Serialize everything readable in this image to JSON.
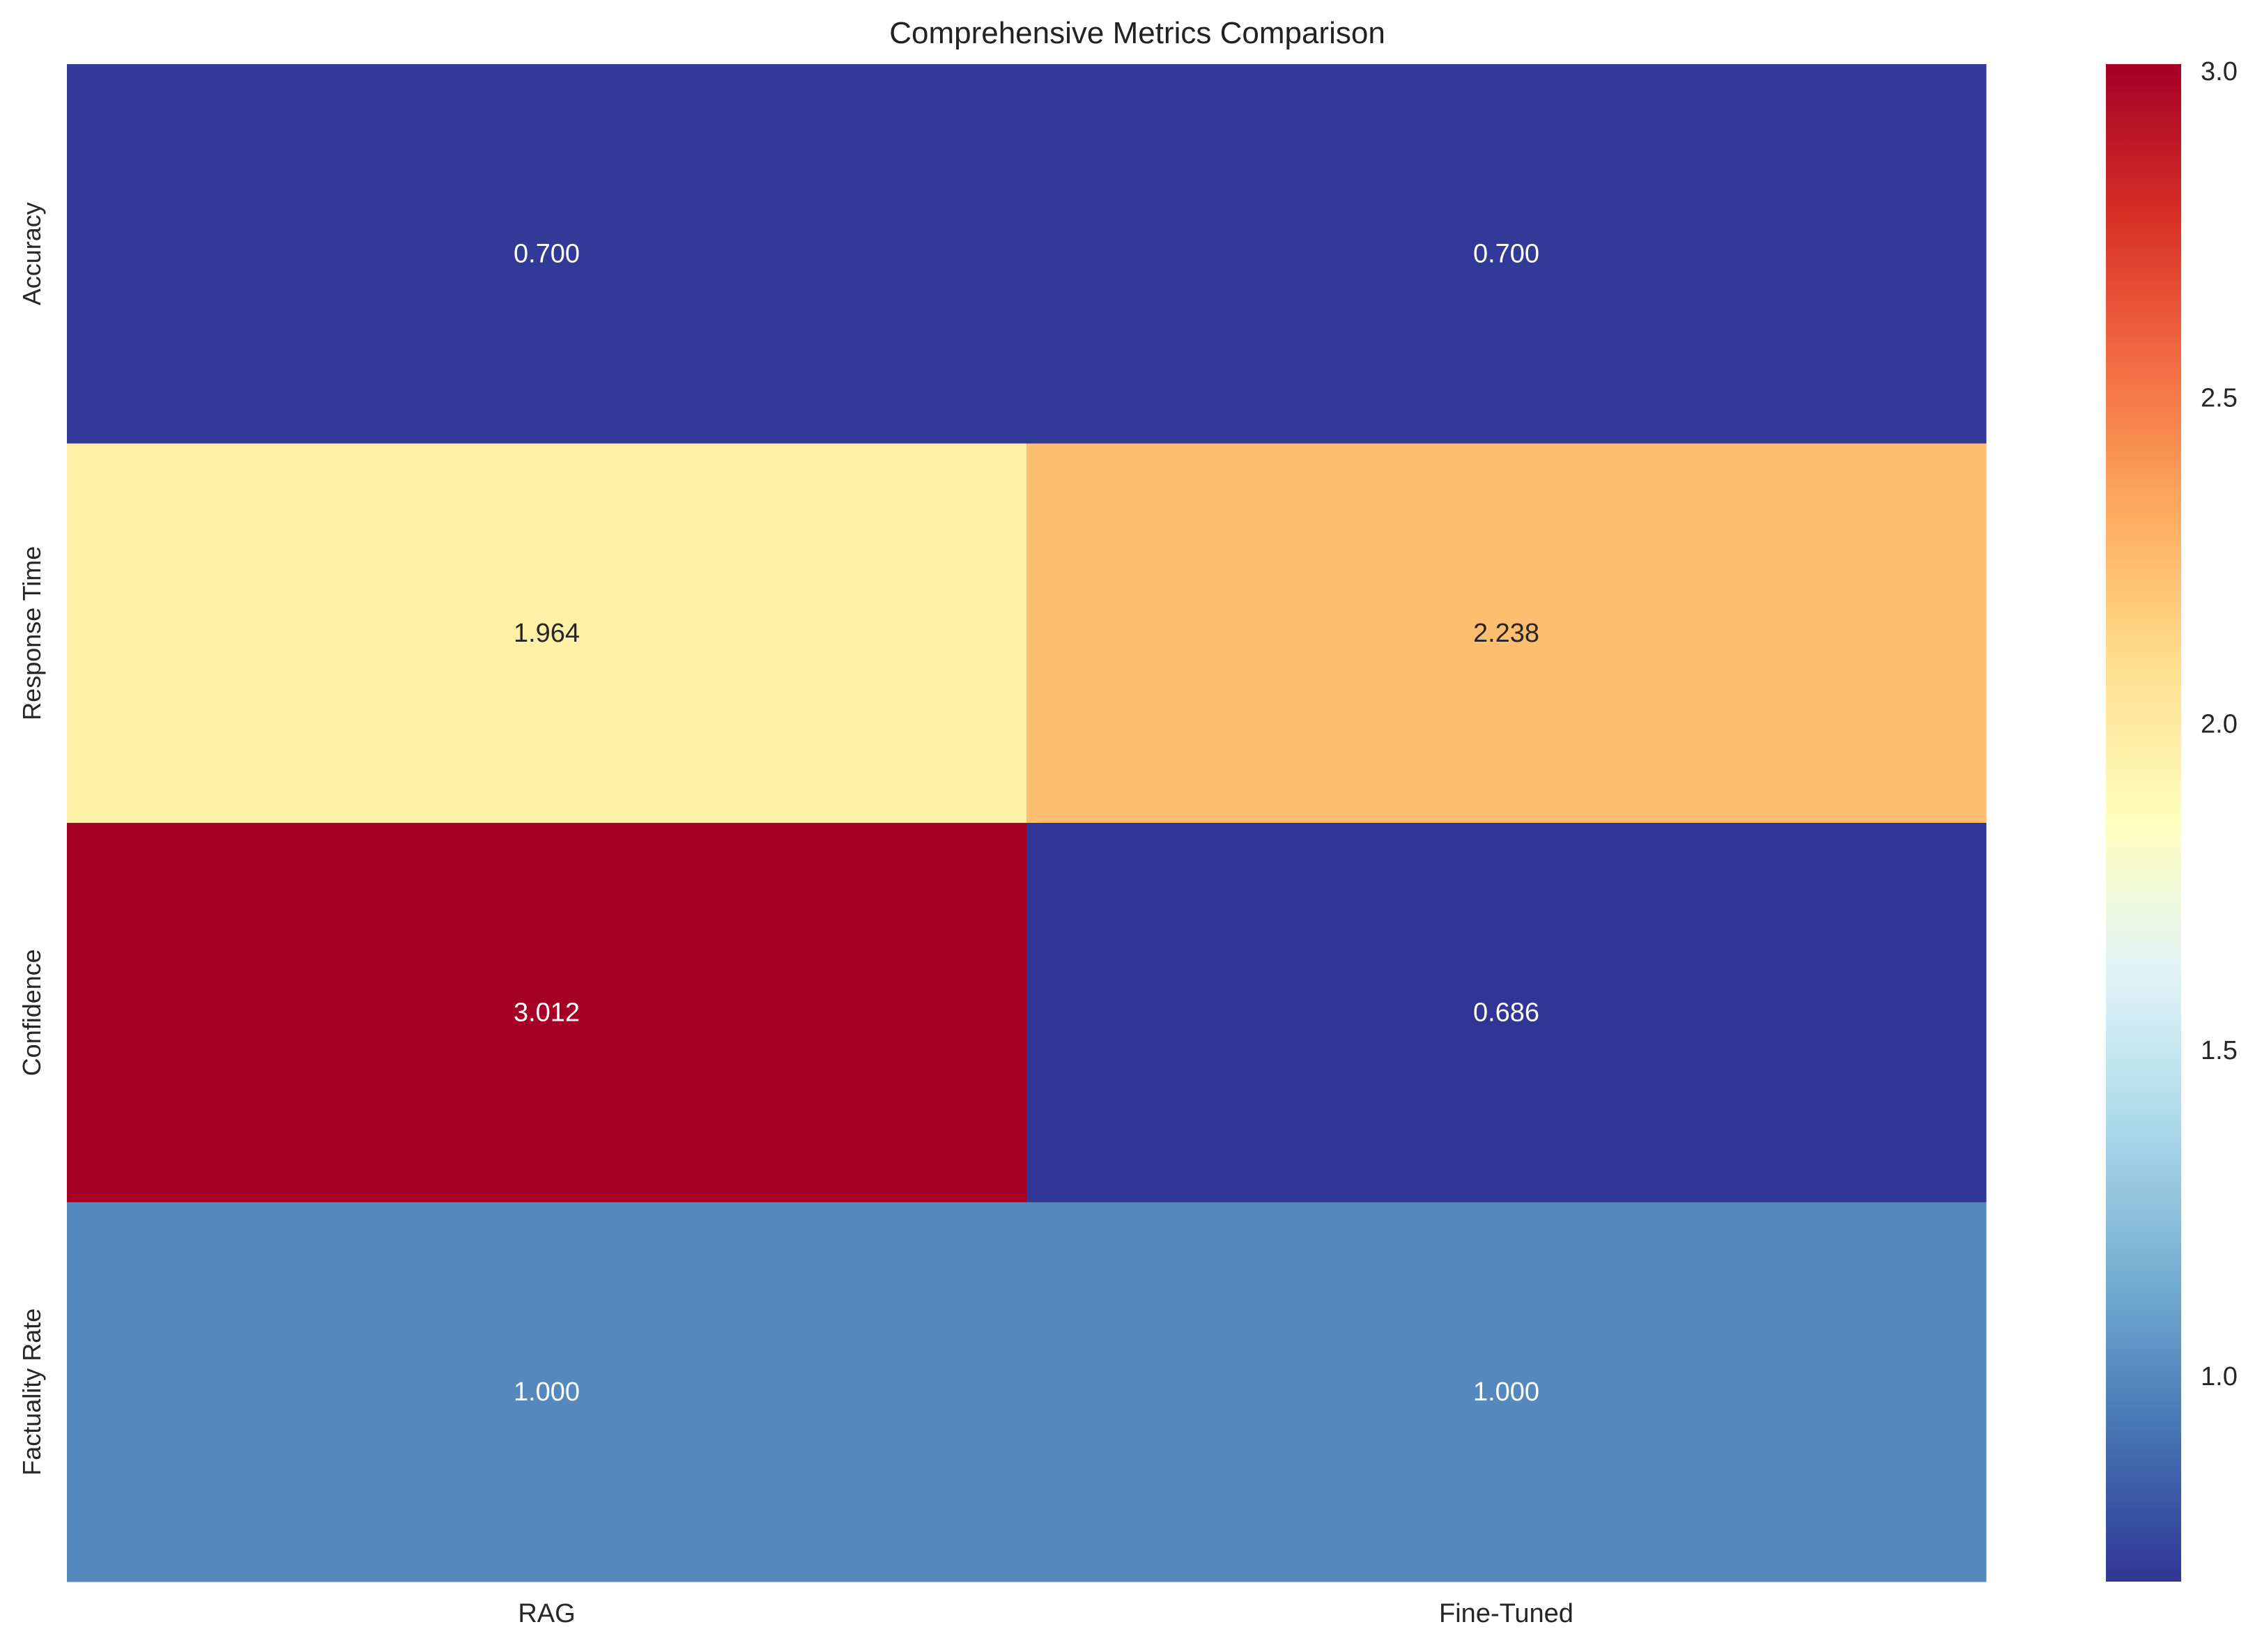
{
  "chart_data": {
    "type": "heatmap",
    "title": "Comprehensive Metrics Comparison",
    "xlabel": "",
    "ylabel": "",
    "x_categories": [
      "RAG",
      "Fine-Tuned"
    ],
    "y_categories": [
      "Accuracy",
      "Response Time",
      "Confidence",
      "Factuality Rate"
    ],
    "values": [
      [
        0.7,
        0.7
      ],
      [
        1.964,
        2.238
      ],
      [
        3.012,
        0.686
      ],
      [
        1.0,
        1.0
      ]
    ],
    "cell_labels": [
      [
        "0.700",
        "0.700"
      ],
      [
        "1.964",
        "2.238"
      ],
      [
        "3.012",
        "0.686"
      ],
      [
        "1.000",
        "1.000"
      ]
    ],
    "colormap": "RdYlBu_r",
    "colorbar": {
      "range": [
        0.686,
        3.012
      ],
      "ticks": [
        1.0,
        1.5,
        2.0,
        2.5,
        3.0
      ],
      "tick_labels": [
        "1.0",
        "1.5",
        "2.0",
        "2.5",
        "3.0"
      ]
    },
    "grid": false,
    "legend": "colorbar-right"
  }
}
